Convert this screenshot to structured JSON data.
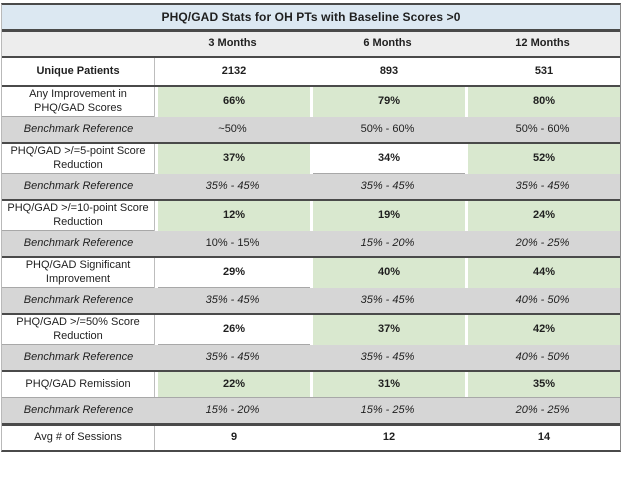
{
  "title": "PHQ/GAD Stats for OH PTs with Baseline Scores >0",
  "columns": {
    "label": "",
    "c1": "3 Months",
    "c2": "6 Months",
    "c3": "12 Months"
  },
  "colors": {
    "title_bg": "#dce8f2",
    "header_bg": "#ededed",
    "benchmark_bg": "#d6d6d6",
    "highlight_green": "#d9e8cf",
    "border_dark": "#4a4a4a"
  },
  "rows": [
    {
      "kind": "data",
      "name": "unique-patients",
      "label": "Unique Patients",
      "bold_label": true,
      "tall": false,
      "values": [
        {
          "text": "2132",
          "highlight": false
        },
        {
          "text": "893",
          "highlight": false
        },
        {
          "text": "531",
          "highlight": false
        }
      ]
    },
    {
      "kind": "data",
      "name": "any-improvement",
      "label": "Any Improvement in PHQ/GAD Scores",
      "bold_label": false,
      "tall": true,
      "group_start": true,
      "values": [
        {
          "text": "66%",
          "highlight": true
        },
        {
          "text": "79%",
          "highlight": true
        },
        {
          "text": "80%",
          "highlight": true
        }
      ]
    },
    {
      "kind": "benchmark",
      "name": "benchmark-any-improvement",
      "label": "Benchmark Reference",
      "values": [
        {
          "text": "~50%",
          "italic": false
        },
        {
          "text": "50% - 60%",
          "italic": false
        },
        {
          "text": "50% - 60%",
          "italic": false
        }
      ]
    },
    {
      "kind": "data",
      "name": "five-point-reduction",
      "label": "PHQ/GAD >/=5-point Score Reduction",
      "bold_label": false,
      "tall": true,
      "group_start": true,
      "values": [
        {
          "text": "37%",
          "highlight": true
        },
        {
          "text": "34%",
          "highlight": false
        },
        {
          "text": "52%",
          "highlight": true
        }
      ]
    },
    {
      "kind": "benchmark",
      "name": "benchmark-five-point",
      "label": "Benchmark Reference",
      "values": [
        {
          "text": "35% - 45%",
          "italic": true
        },
        {
          "text": "35% - 45%",
          "italic": true
        },
        {
          "text": "35% - 45%",
          "italic": true
        }
      ]
    },
    {
      "kind": "data",
      "name": "ten-point-reduction",
      "label": "PHQ/GAD >/=10-point Score Reduction",
      "bold_label": false,
      "tall": true,
      "group_start": true,
      "values": [
        {
          "text": "12%",
          "highlight": true
        },
        {
          "text": "19%",
          "highlight": true
        },
        {
          "text": "24%",
          "highlight": true
        }
      ]
    },
    {
      "kind": "benchmark",
      "name": "benchmark-ten-point",
      "label": "Benchmark Reference",
      "values": [
        {
          "text": "10% - 15%",
          "italic": false
        },
        {
          "text": "15% - 20%",
          "italic": true
        },
        {
          "text": "20% - 25%",
          "italic": true
        }
      ]
    },
    {
      "kind": "data",
      "name": "significant-improvement",
      "label": "PHQ/GAD Significant Improvement",
      "bold_label": false,
      "tall": true,
      "group_start": true,
      "values": [
        {
          "text": "29%",
          "highlight": false
        },
        {
          "text": "40%",
          "highlight": true
        },
        {
          "text": "44%",
          "highlight": true
        }
      ]
    },
    {
      "kind": "benchmark",
      "name": "benchmark-significant",
      "label": "Benchmark Reference",
      "values": [
        {
          "text": "35% - 45%",
          "italic": true
        },
        {
          "text": "35% - 45%",
          "italic": true
        },
        {
          "text": "40% - 50%",
          "italic": true
        }
      ]
    },
    {
      "kind": "data",
      "name": "fifty-percent-reduction",
      "label": "PHQ/GAD >/=50% Score Reduction",
      "bold_label": false,
      "tall": true,
      "group_start": true,
      "values": [
        {
          "text": "26%",
          "highlight": false
        },
        {
          "text": "37%",
          "highlight": true
        },
        {
          "text": "42%",
          "highlight": true
        }
      ]
    },
    {
      "kind": "benchmark",
      "name": "benchmark-fifty-percent",
      "label": "Benchmark Reference",
      "values": [
        {
          "text": "35% - 45%",
          "italic": true
        },
        {
          "text": "35% - 45%",
          "italic": true
        },
        {
          "text": "40% - 50%",
          "italic": true
        }
      ]
    },
    {
      "kind": "data",
      "name": "remission",
      "label": "PHQ/GAD Remission",
      "bold_label": false,
      "tall": false,
      "group_start": true,
      "values": [
        {
          "text": "22%",
          "highlight": true
        },
        {
          "text": "31%",
          "highlight": true
        },
        {
          "text": "35%",
          "highlight": true
        }
      ]
    },
    {
      "kind": "benchmark",
      "name": "benchmark-remission",
      "label": "Benchmark Reference",
      "values": [
        {
          "text": "15% - 20%",
          "italic": true
        },
        {
          "text": "15% - 25%",
          "italic": true
        },
        {
          "text": "20% - 25%",
          "italic": true
        }
      ]
    },
    {
      "kind": "data",
      "name": "avg-sessions",
      "label": "Avg # of Sessions",
      "bold_label": false,
      "tall": false,
      "final": true,
      "values": [
        {
          "text": "9",
          "highlight": false
        },
        {
          "text": "12",
          "highlight": false
        },
        {
          "text": "14",
          "highlight": false
        }
      ]
    }
  ]
}
